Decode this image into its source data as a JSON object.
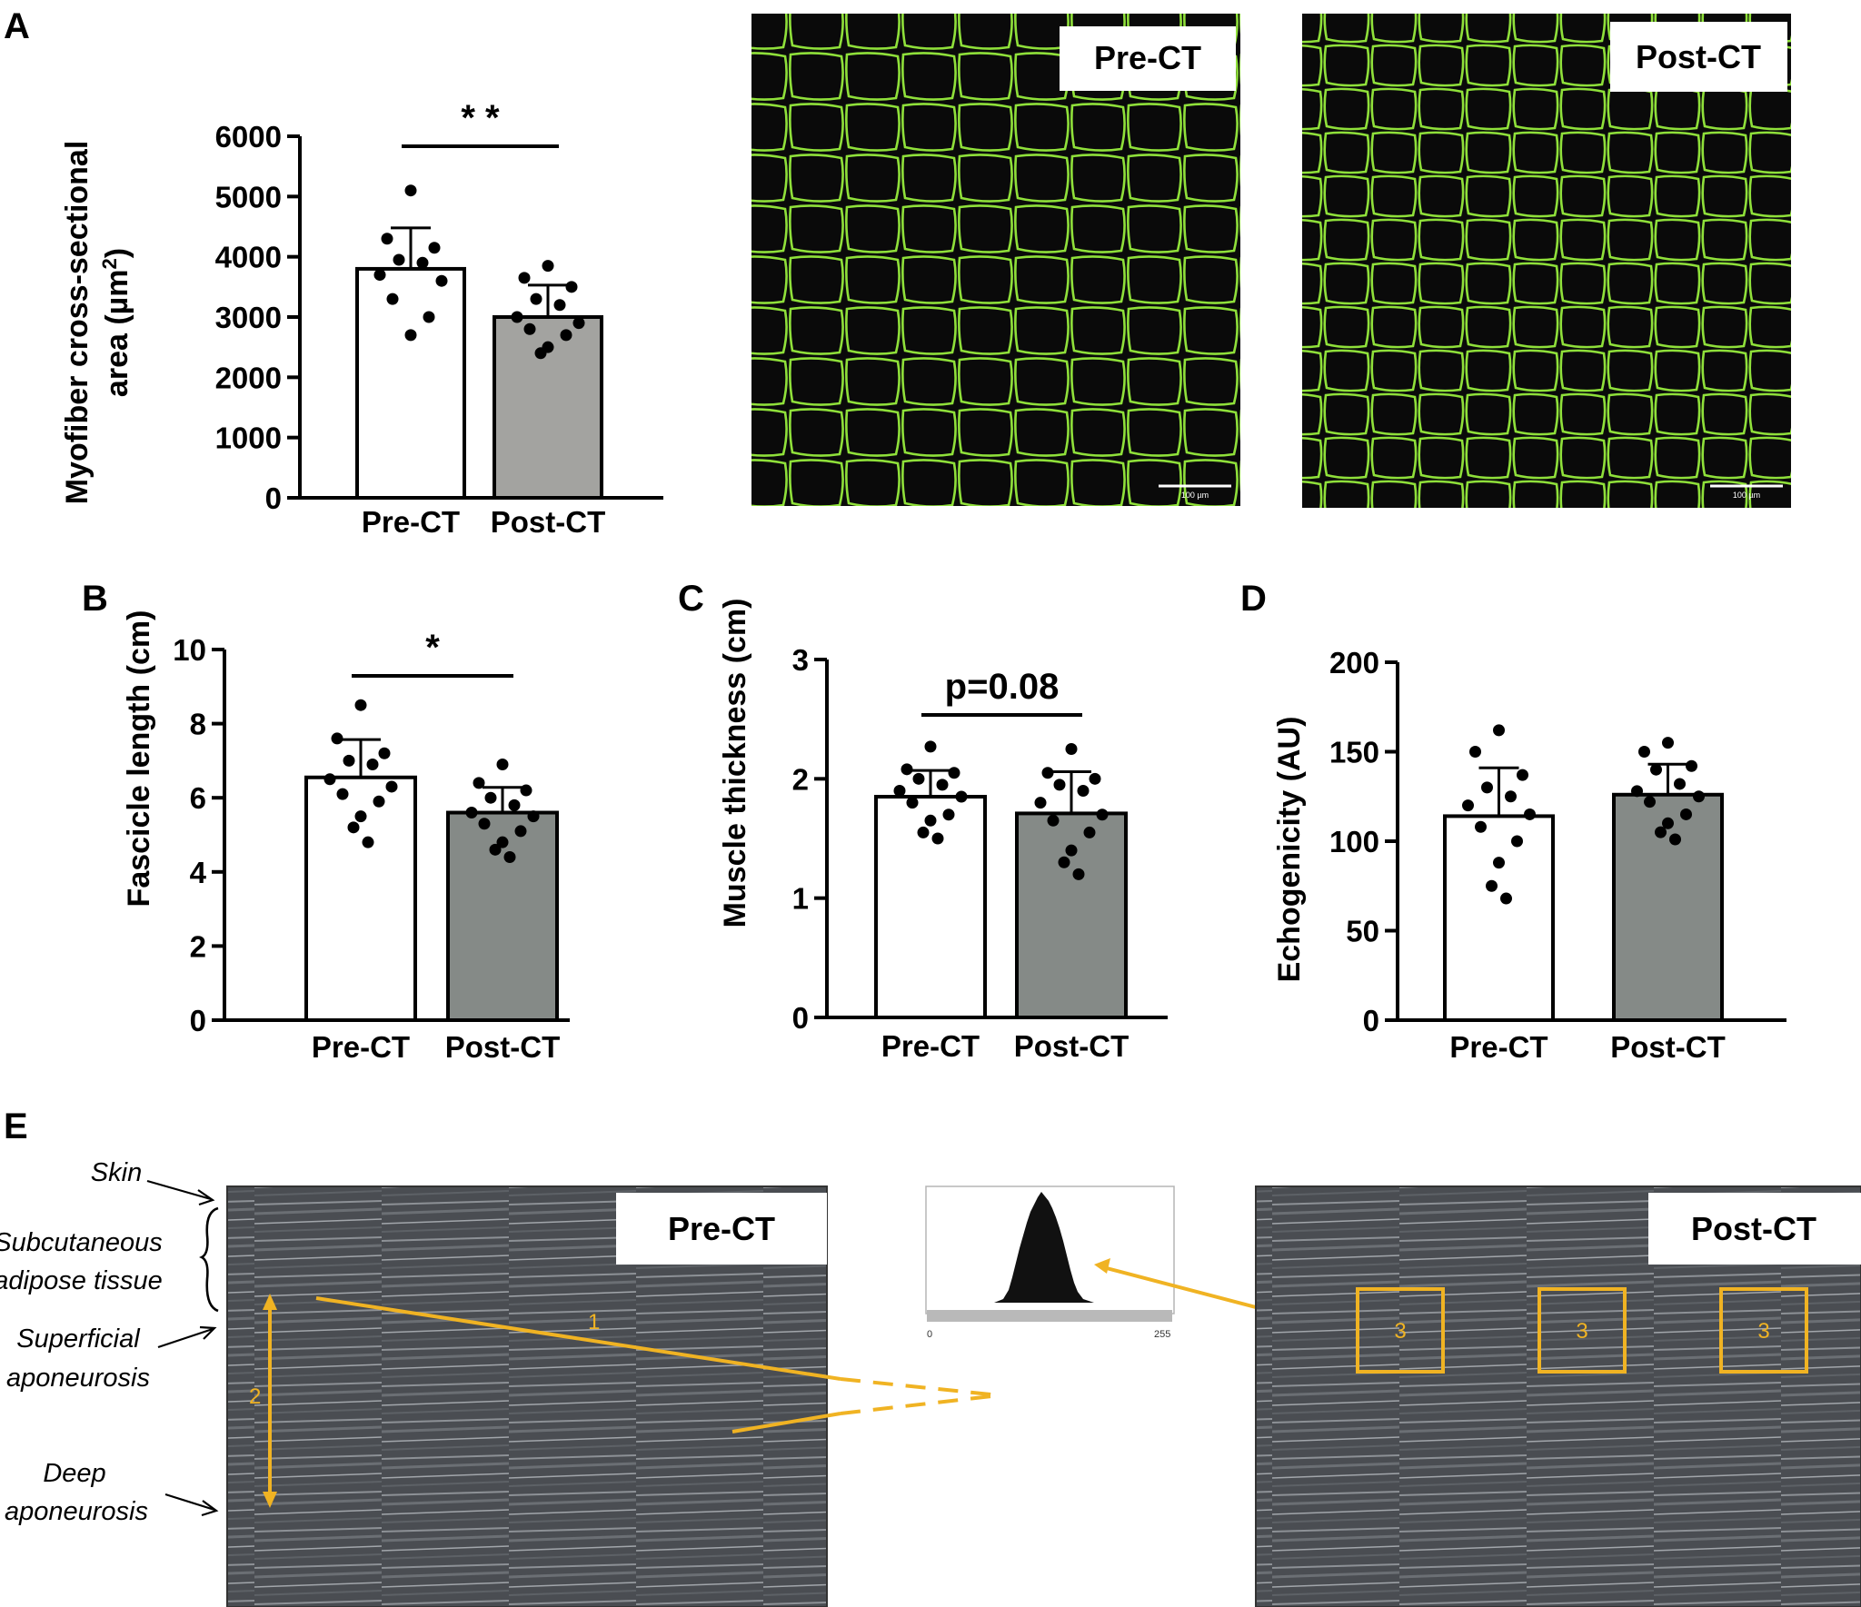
{
  "figure": {
    "panel_A": {
      "letter": "A",
      "micrograph_labels": [
        "Pre-CT",
        "Post-CT"
      ],
      "scale_bar_label": "100 µm",
      "stain_color": "#8fe03a"
    },
    "panel_B": {
      "letter": "B"
    },
    "panel_C": {
      "letter": "C"
    },
    "panel_D": {
      "letter": "D"
    },
    "panel_E": {
      "letter": "E",
      "image_labels": [
        "Pre-CT",
        "Post-CT"
      ],
      "anatomy_labels": {
        "skin": "Skin",
        "subcutaneous": [
          "Subcutaneous",
          "adipose tissue"
        ],
        "superficial": [
          "Superficial",
          "aponeurosis"
        ],
        "deep": [
          "Deep",
          "aponeurosis"
        ]
      },
      "annotations": {
        "fascicle": "1",
        "thickness": "2",
        "roi": "3"
      },
      "histogram_ticks": [
        "0",
        "255"
      ],
      "annotation_color": "#f0b323"
    },
    "colors": {
      "pre_bar": "#ffffff",
      "post_bar_A": "#a3a3a0",
      "post_bar_BCD": "#858a87",
      "points": "#000000"
    }
  },
  "chart_data": [
    {
      "panel": "A",
      "type": "bar",
      "categories": [
        "Pre-CT",
        "Post-CT"
      ],
      "values": [
        3800,
        3000
      ],
      "sd": [
        680,
        530
      ],
      "points": [
        [
          5100,
          4300,
          4150,
          3950,
          3900,
          3700,
          3600,
          3300,
          3000,
          2700
        ],
        [
          3850,
          3650,
          3500,
          3300,
          3200,
          3000,
          2900,
          2800,
          2700,
          2500,
          2400
        ]
      ],
      "ylabel": "Myofiber cross-sectional area (µm²)",
      "ylabel_lines": [
        "Myofiber cross-sectional",
        "area (µm",
        "2",
        ")"
      ],
      "ylim": [
        0,
        6000
      ],
      "yticks": [
        0,
        1000,
        2000,
        3000,
        4000,
        5000,
        6000
      ],
      "significance": "* *"
    },
    {
      "panel": "B",
      "type": "bar",
      "categories": [
        "Pre-CT",
        "Post-CT"
      ],
      "values": [
        6.55,
        5.6
      ],
      "sd": [
        1.02,
        0.68
      ],
      "points": [
        [
          8.5,
          7.6,
          7.2,
          7.0,
          6.9,
          6.5,
          6.3,
          6.1,
          5.9,
          5.5,
          5.2,
          4.8
        ],
        [
          6.9,
          6.4,
          6.2,
          6.0,
          5.8,
          5.6,
          5.5,
          5.3,
          5.1,
          4.8,
          4.6,
          4.4
        ]
      ],
      "ylabel": "Fascicle length (cm)",
      "ylim": [
        0,
        10
      ],
      "yticks": [
        0,
        2,
        4,
        6,
        8,
        10
      ],
      "significance": "*"
    },
    {
      "panel": "C",
      "type": "bar",
      "categories": [
        "Pre-CT",
        "Post-CT"
      ],
      "values": [
        1.85,
        1.71
      ],
      "sd": [
        0.22,
        0.35
      ],
      "points": [
        [
          2.27,
          2.08,
          2.05,
          2.0,
          1.95,
          1.9,
          1.85,
          1.8,
          1.7,
          1.65,
          1.55,
          1.5
        ],
        [
          2.25,
          2.05,
          2.0,
          1.95,
          1.9,
          1.8,
          1.7,
          1.65,
          1.55,
          1.4,
          1.3,
          1.2
        ]
      ],
      "ylabel": "Muscle thickness (cm)",
      "ylim": [
        0,
        3
      ],
      "yticks": [
        0,
        1,
        2,
        3
      ],
      "significance": "p=0.08"
    },
    {
      "panel": "D",
      "type": "bar",
      "categories": [
        "Pre-CT",
        "Post-CT"
      ],
      "values": [
        114,
        126
      ],
      "sd": [
        27,
        17
      ],
      "points": [
        [
          162,
          150,
          137,
          130,
          125,
          120,
          115,
          108,
          100,
          88,
          75,
          68
        ],
        [
          155,
          150,
          142,
          140,
          132,
          128,
          125,
          122,
          115,
          110,
          105,
          101
        ]
      ],
      "ylabel": "Echogenicity (AU)",
      "ylim": [
        0,
        200
      ],
      "yticks": [
        0,
        50,
        100,
        150,
        200
      ]
    }
  ]
}
